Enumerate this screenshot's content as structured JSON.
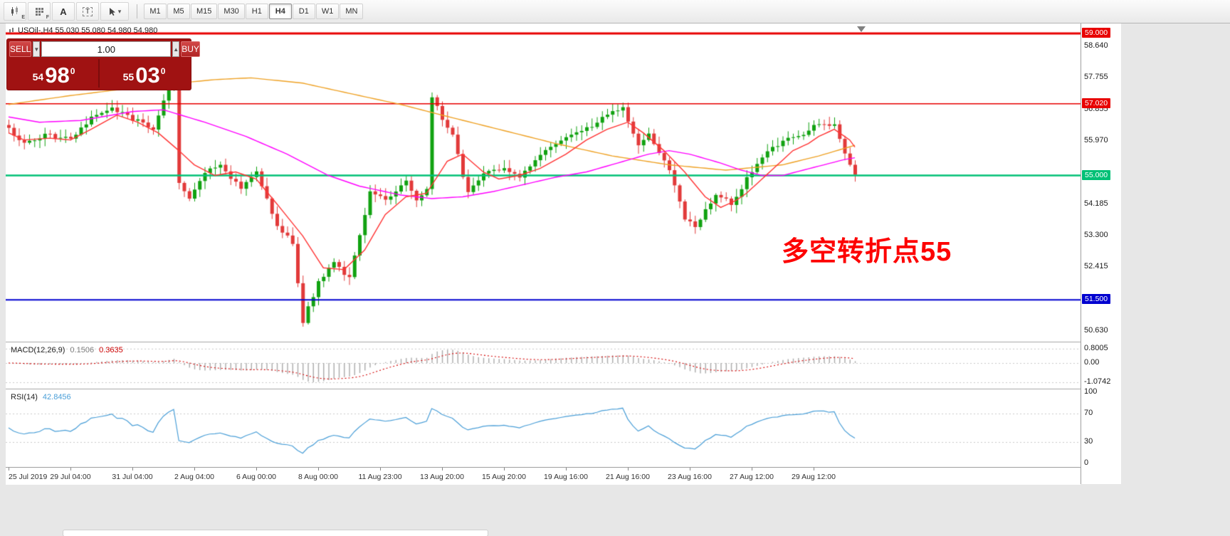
{
  "toolbar": {
    "icons": [
      {
        "name": "candlestick-chart-icon",
        "badge": "E"
      },
      {
        "name": "grid-icon",
        "badge": "F"
      },
      {
        "name": "annotation-a-icon",
        "badge": "A"
      },
      {
        "name": "text-box-icon",
        "badge": "T"
      },
      {
        "name": "cursor-dropdown-icon",
        "badge": "▾"
      }
    ],
    "timeframes": [
      "M1",
      "M5",
      "M15",
      "M30",
      "H1",
      "H4",
      "D1",
      "W1",
      "MN"
    ],
    "selected_timeframe": "H4"
  },
  "symbol_line": "USOil-,H4  55.030 55.080 54.980 54.980",
  "quote_panel": {
    "sell_label": "SELL",
    "buy_label": "BUY",
    "volume": "1.00",
    "spin_down": "▼",
    "spin_up": "▲",
    "sell_price": {
      "int": "54",
      "pips": "98",
      "frac": "0"
    },
    "buy_price": {
      "int": "55",
      "pips": "03",
      "frac": "0"
    }
  },
  "annotation": {
    "text": "多空转折点55",
    "color": "#fd0000"
  },
  "macd": {
    "label": "MACD(12,26,9)",
    "main_value": "0.1506",
    "signal_value": "0.3635",
    "scale": [
      {
        "v": 0.8005,
        "label": "0.8005"
      },
      {
        "v": 0,
        "label": "0.00"
      },
      {
        "v": -1.0742,
        "label": "-1.0742"
      }
    ]
  },
  "rsi": {
    "label": "RSI(14)",
    "value": "42.8456",
    "color": "#4a9fd8",
    "levels": [
      70,
      30
    ],
    "scale": [
      {
        "v": 100,
        "label": "100"
      },
      {
        "v": 70,
        "label": "70"
      },
      {
        "v": 30,
        "label": "30"
      },
      {
        "v": 0,
        "label": "0"
      }
    ]
  },
  "time_axis": [
    {
      "i": 0,
      "label": "25 Jul 2019"
    },
    {
      "i": 12,
      "label": "29 Jul 04:00"
    },
    {
      "i": 24,
      "label": "31 Jul 04:00"
    },
    {
      "i": 36,
      "label": "2 Aug 04:00"
    },
    {
      "i": 48,
      "label": "6 Aug 00:00"
    },
    {
      "i": 60,
      "label": "8 Aug 00:00"
    },
    {
      "i": 72,
      "label": "11 Aug 23:00"
    },
    {
      "i": 84,
      "label": "13 Aug 20:00"
    },
    {
      "i": 96,
      "label": "15 Aug 20:00"
    },
    {
      "i": 108,
      "label": "19 Aug 16:00"
    },
    {
      "i": 120,
      "label": "21 Aug 16:00"
    },
    {
      "i": 132,
      "label": "23 Aug 16:00"
    },
    {
      "i": 144,
      "label": "27 Aug 12:00"
    },
    {
      "i": 156,
      "label": "29 Aug 12:00"
    }
  ],
  "chart_data": {
    "type": "candlestick",
    "symbol": "USOil-",
    "timeframe": "H4",
    "candle_count": 165,
    "ylim": [
      50.32,
      59.28
    ],
    "up_color": "#11a211",
    "down_color": "#e23a3a",
    "close_path": [
      [
        0,
        56.3
      ],
      [
        3,
        55.9
      ],
      [
        7,
        56.15
      ],
      [
        12,
        56.0
      ],
      [
        16,
        56.6
      ],
      [
        20,
        56.9
      ],
      [
        24,
        56.6
      ],
      [
        28,
        56.3
      ],
      [
        31,
        57.5
      ],
      [
        32,
        57.85
      ],
      [
        33,
        54.8
      ],
      [
        35,
        54.35
      ],
      [
        38,
        55.1
      ],
      [
        41,
        55.3
      ],
      [
        45,
        54.6
      ],
      [
        48,
        55.1
      ],
      [
        52,
        53.6
      ],
      [
        55,
        53.1
      ],
      [
        57,
        50.9
      ],
      [
        60,
        52.0
      ],
      [
        63,
        52.55
      ],
      [
        66,
        52.1
      ],
      [
        70,
        54.5
      ],
      [
        73,
        54.3
      ],
      [
        77,
        54.85
      ],
      [
        79,
        54.3
      ],
      [
        81,
        54.6
      ],
      [
        82,
        57.2
      ],
      [
        84,
        56.6
      ],
      [
        86,
        56.1
      ],
      [
        88,
        55.0
      ],
      [
        89,
        54.5
      ],
      [
        92,
        55.05
      ],
      [
        96,
        55.2
      ],
      [
        99,
        55.0
      ],
      [
        103,
        55.6
      ],
      [
        108,
        56.1
      ],
      [
        112,
        56.3
      ],
      [
        117,
        56.8
      ],
      [
        119,
        56.9
      ],
      [
        122,
        55.8
      ],
      [
        124,
        56.2
      ],
      [
        128,
        55.1
      ],
      [
        131,
        53.8
      ],
      [
        133,
        53.5
      ],
      [
        137,
        54.5
      ],
      [
        140,
        54.2
      ],
      [
        143,
        54.9
      ],
      [
        146,
        55.5
      ],
      [
        150,
        56.0
      ],
      [
        153,
        56.1
      ],
      [
        157,
        56.5
      ],
      [
        160,
        56.4
      ],
      [
        163,
        55.3
      ],
      [
        164,
        54.98
      ]
    ],
    "hlines": [
      {
        "price": 59.0,
        "label": "59.000",
        "color": "#e80000",
        "width": 3
      },
      {
        "price": 57.02,
        "label": "57.020",
        "color": "#e80000",
        "width": 1.5
      },
      {
        "price": 55.0,
        "label": "55.000",
        "color": "#00c076",
        "width": 2.5
      },
      {
        "price": 51.5,
        "label": "51.500",
        "color": "#0000d0",
        "width": 2
      }
    ],
    "price_labels": [
      {
        "price": 58.64,
        "label": "58.640"
      },
      {
        "price": 57.755,
        "label": "57.755"
      },
      {
        "price": 56.855,
        "label": "56.855"
      },
      {
        "price": 55.97,
        "label": "55.970"
      },
      {
        "price": 54.185,
        "label": "54.185"
      },
      {
        "price": 53.3,
        "label": "53.300"
      },
      {
        "price": 52.415,
        "label": "52.415"
      },
      {
        "price": 50.63,
        "label": "50.630"
      }
    ],
    "ma_lines": [
      {
        "name": "ma-slow-orange",
        "color": "#efa225",
        "points": [
          [
            0,
            57.0
          ],
          [
            12,
            57.25
          ],
          [
            26,
            57.5
          ],
          [
            40,
            57.7
          ],
          [
            47,
            57.75
          ],
          [
            57,
            57.6
          ],
          [
            68,
            57.25
          ],
          [
            76,
            57.0
          ],
          [
            84,
            56.7
          ],
          [
            95,
            56.3
          ],
          [
            106,
            55.9
          ],
          [
            117,
            55.55
          ],
          [
            128,
            55.3
          ],
          [
            139,
            55.15
          ],
          [
            150,
            55.3
          ],
          [
            157,
            55.55
          ],
          [
            164,
            55.85
          ]
        ]
      },
      {
        "name": "ma-mid-magenta",
        "color": "#ff00ff",
        "points": [
          [
            0,
            56.65
          ],
          [
            6,
            56.5
          ],
          [
            14,
            56.55
          ],
          [
            24,
            56.8
          ],
          [
            30,
            56.85
          ],
          [
            38,
            56.5
          ],
          [
            46,
            56.1
          ],
          [
            54,
            55.6
          ],
          [
            62,
            55.0
          ],
          [
            68,
            54.7
          ],
          [
            76,
            54.45
          ],
          [
            82,
            54.35
          ],
          [
            88,
            54.4
          ],
          [
            94,
            54.55
          ],
          [
            100,
            54.75
          ],
          [
            106,
            54.95
          ],
          [
            112,
            55.1
          ],
          [
            118,
            55.35
          ],
          [
            124,
            55.6
          ],
          [
            128,
            55.7
          ],
          [
            132,
            55.6
          ],
          [
            138,
            55.35
          ],
          [
            142,
            55.15
          ],
          [
            146,
            55.0
          ],
          [
            150,
            55.0
          ],
          [
            154,
            55.15
          ],
          [
            158,
            55.3
          ],
          [
            162,
            55.45
          ],
          [
            164,
            55.5
          ]
        ]
      },
      {
        "name": "ma-fast-red",
        "color": "#ff3333",
        "points": [
          [
            0,
            56.2
          ],
          [
            3,
            56.0
          ],
          [
            8,
            56.05
          ],
          [
            12,
            56.0
          ],
          [
            16,
            56.3
          ],
          [
            21,
            56.7
          ],
          [
            25,
            56.5
          ],
          [
            29,
            56.2
          ],
          [
            33,
            55.7
          ],
          [
            36,
            55.3
          ],
          [
            40,
            55.0
          ],
          [
            44,
            55.1
          ],
          [
            48,
            54.9
          ],
          [
            52,
            54.2
          ],
          [
            57,
            53.3
          ],
          [
            61,
            52.4
          ],
          [
            65,
            52.35
          ],
          [
            69,
            52.9
          ],
          [
            73,
            53.9
          ],
          [
            77,
            54.4
          ],
          [
            81,
            54.5
          ],
          [
            85,
            55.4
          ],
          [
            88,
            55.6
          ],
          [
            92,
            55.1
          ],
          [
            95,
            54.9
          ],
          [
            99,
            55.0
          ],
          [
            103,
            55.2
          ],
          [
            108,
            55.6
          ],
          [
            112,
            56.0
          ],
          [
            116,
            56.3
          ],
          [
            120,
            56.5
          ],
          [
            123,
            56.2
          ],
          [
            127,
            55.7
          ],
          [
            131,
            55.1
          ],
          [
            135,
            54.4
          ],
          [
            138,
            54.1
          ],
          [
            141,
            54.3
          ],
          [
            143,
            54.5
          ],
          [
            146,
            54.9
          ],
          [
            149,
            55.3
          ],
          [
            152,
            55.7
          ],
          [
            155,
            55.9
          ],
          [
            157,
            56.1
          ],
          [
            160,
            56.3
          ],
          [
            163,
            56.0
          ],
          [
            164,
            55.8
          ]
        ]
      }
    ]
  }
}
